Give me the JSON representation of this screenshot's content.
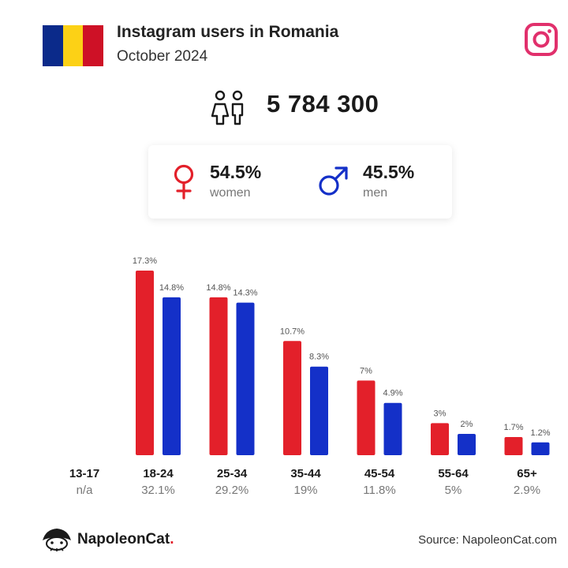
{
  "header": {
    "title": "Instagram users in Romania",
    "subtitle": "October 2024",
    "flag_colors": [
      "#0b2a8a",
      "#fcd116",
      "#ce1126"
    ],
    "brand_icon": "instagram-icon"
  },
  "total": {
    "value": "5 784 300",
    "icon": "people-icon"
  },
  "gender": {
    "women": {
      "percent": "54.5%",
      "label": "women",
      "icon": "female-icon",
      "color": "#e3202a"
    },
    "men": {
      "percent": "45.5%",
      "label": "men",
      "icon": "male-icon",
      "color": "#1430c8"
    }
  },
  "chart_data": {
    "type": "bar",
    "categories": [
      "13-17",
      "18-24",
      "25-34",
      "35-44",
      "45-54",
      "55-64",
      "65+"
    ],
    "category_totals": [
      "n/a",
      "32.1%",
      "29.2%",
      "19%",
      "11.8%",
      "5%",
      "2.9%"
    ],
    "series": [
      {
        "color": "#e3202a",
        "values": [
          null,
          17.3,
          14.8,
          10.7,
          7,
          3,
          1.7
        ],
        "labels": [
          "",
          "17.3%",
          "14.8%",
          "10.7%",
          "7%",
          "3%",
          "1.7%"
        ]
      },
      {
        "color": "#1430c8",
        "values": [
          null,
          14.8,
          14.3,
          8.3,
          4.9,
          2,
          1.2
        ],
        "labels": [
          "",
          "14.8%",
          "14.3%",
          "8.3%",
          "4.9%",
          "2%",
          "1.2%"
        ]
      }
    ],
    "ylim": [
      0,
      17.3
    ],
    "grid": false
  },
  "footer": {
    "brand_name": "NapoleonCat",
    "brand_dot": ".",
    "brand_icon": "napoleoncat-logo-icon",
    "source": "Source: NapoleonCat.com"
  }
}
